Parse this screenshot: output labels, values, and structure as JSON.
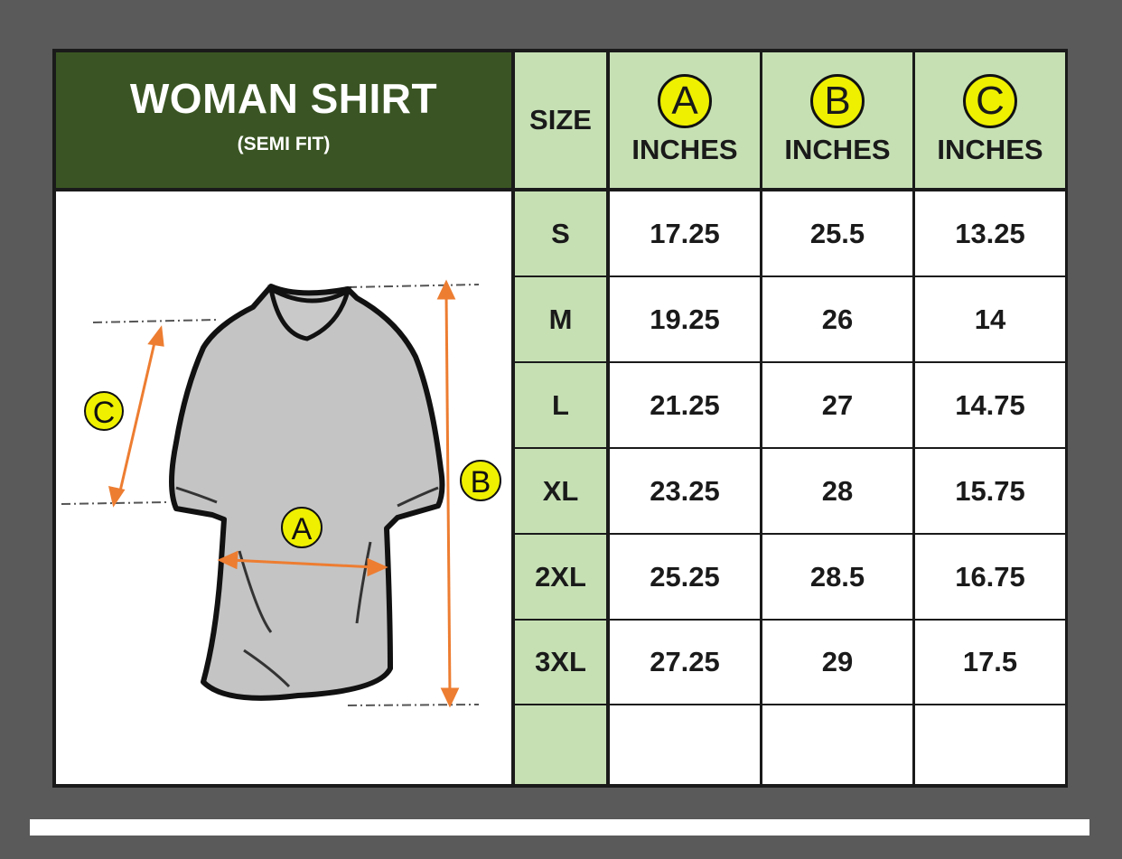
{
  "title": "WOMAN SHIRT",
  "subtitle": "(SEMI FIT)",
  "size_header": "SIZE",
  "columns": [
    {
      "letter": "A",
      "unit": "INCHES"
    },
    {
      "letter": "B",
      "unit": "INCHES"
    },
    {
      "letter": "C",
      "unit": "INCHES"
    }
  ],
  "rows": [
    {
      "size": "S",
      "a": "17.25",
      "b": "25.5",
      "c": "13.25"
    },
    {
      "size": "M",
      "a": "19.25",
      "b": "26",
      "c": "14"
    },
    {
      "size": "L",
      "a": "21.25",
      "b": "27",
      "c": "14.75"
    },
    {
      "size": "XL",
      "a": "23.25",
      "b": "28",
      "c": "15.75"
    },
    {
      "size": "2XL",
      "a": "25.25",
      "b": "28.5",
      "c": "16.75"
    },
    {
      "size": "3XL",
      "a": "27.25",
      "b": "29",
      "c": "17.5"
    }
  ],
  "diagram_labels": {
    "a": "A",
    "b": "B",
    "c": "C"
  },
  "colors": {
    "header_dark_green": "#3a5523",
    "header_light_green": "#c6e0b4",
    "badge_yellow": "#eef000",
    "arrow_orange": "#ed7d31",
    "shirt_gray": "#c4c4c4"
  }
}
